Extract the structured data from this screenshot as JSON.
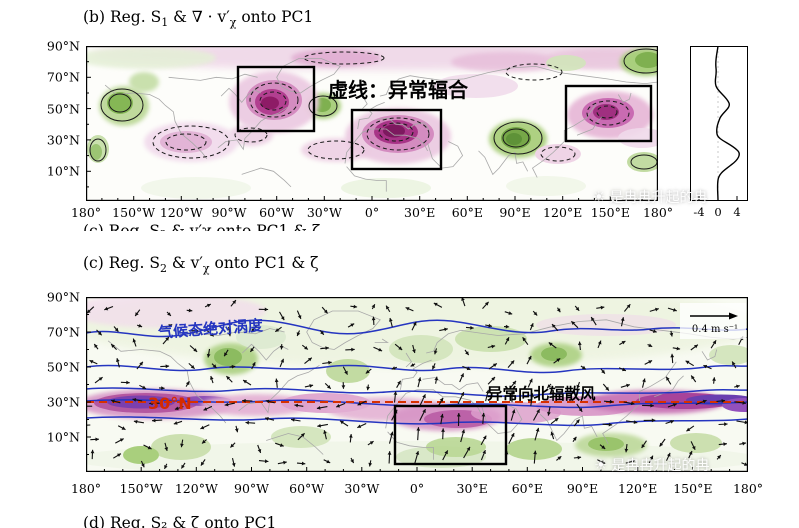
{
  "figure": {
    "panel_b": {
      "title": {
        "p1": "(b) Reg. S",
        "sub1": "1",
        "p2": " & ∇ · v′",
        "sub2": "χ",
        "p3": " onto PC1"
      },
      "lat_labels": [
        "90°N",
        "70°N",
        "50°N",
        "30°N",
        "10°N"
      ],
      "lon_labels": [
        "180°",
        "150°W",
        "120°W",
        "90°W",
        "60°W",
        "30°W",
        "0°",
        "30°E",
        "60°E",
        "90°E",
        "120°E",
        "150°E",
        "180°"
      ],
      "annotation": "虚线：异常辐合",
      "side_plot": {
        "tick_labels": [
          "-4",
          "0",
          "4"
        ]
      }
    },
    "panel_c": {
      "title": {
        "p1": "(c) Reg. S",
        "sub1": "2",
        "p2": " & v′",
        "sub2": "χ",
        "p3": " onto PC1 & ζ"
      },
      "lat_labels": [
        "90°N",
        "70°N",
        "50°N",
        "30°N",
        "10°N"
      ],
      "lon_labels": [
        "180°",
        "150°W",
        "120°W",
        "90°W",
        "60°W",
        "30°W",
        "0°",
        "30°E",
        "60°E",
        "90°E",
        "120°E",
        "150°E",
        "180°"
      ],
      "vorticity_label": "气候态绝对涡度",
      "lat30_label": "30°N",
      "wind_label": "异常向北辐散风",
      "ref_arrow_label": "0.4 m s⁻¹"
    },
    "cropped_line_c": "(c) Reg. S₂ & v′χ onto PC1 & ζ",
    "cropped_line_d": "(d) Reg. S₂ & ζ onto PC1",
    "watermark": {
      "icon": "☀",
      "text": "是冉冉升起的冉"
    },
    "colors": {
      "magenta_dark": "#8e1b66",
      "magenta": "#c061a8",
      "magenta_light": "#ecc9e0",
      "purple_core": "#6a3fb0",
      "green_dark": "#6fa83e",
      "green": "#a5cc76",
      "green_light": "#dcead0",
      "vorticity_blue": "#2535c0",
      "lat30_red": "#d42a00",
      "coast_gray": "#a8a8a8"
    }
  },
  "chart_data": [
    {
      "type": "heatmap",
      "panel": "b",
      "title": "(b) Reg. S1 & ∇·v'χ onto PC1",
      "x": {
        "label": "longitude",
        "ticks": [
          "180°",
          "150°W",
          "120°W",
          "90°W",
          "60°W",
          "30°W",
          "0°",
          "30°E",
          "60°E",
          "90°E",
          "120°E",
          "150°E",
          "180°"
        ]
      },
      "y": {
        "label": "latitude",
        "ticks": [
          "90°N",
          "70°N",
          "50°N",
          "30°N",
          "10°N"
        ]
      },
      "legend": "magenta shading with dashed contours = anomalous convergence (虚线：异常辐合); green shading with solid contours = anomalous divergence",
      "highlighted_regions": [
        {
          "approx_lon": "95°W–45°W",
          "approx_lat": "50°N–77°N",
          "signal": "strong magenta convergence center"
        },
        {
          "approx_lon": "10°W–45°E",
          "approx_lat": "18°N–50°N",
          "signal": "strongest magenta convergence center"
        },
        {
          "approx_lon": "120°E–175°E",
          "approx_lat": "38°N–62°N",
          "signal": "magenta convergence center"
        }
      ],
      "side_profile": {
        "x_ticks": [
          -4,
          0,
          4
        ],
        "description": "zonal-mean regression profile vs latitude; positive peaks near 55°N (~+2) and 30°N–35°N (~+4)"
      }
    },
    {
      "type": "heatmap",
      "panel": "c",
      "title": "(c) Reg. S2 & v'χ onto PC1 & ζ",
      "x": {
        "label": "longitude",
        "ticks": [
          "180°",
          "150°W",
          "120°W",
          "90°W",
          "60°W",
          "30°W",
          "0°",
          "30°E",
          "60°E",
          "90°E",
          "120°E",
          "150°E",
          "180°"
        ]
      },
      "y": {
        "label": "latitude",
        "ticks": [
          "90°N",
          "70°N",
          "50°N",
          "30°N",
          "10°N"
        ]
      },
      "legend": "magenta/purple zonal band along ~30°N; green shading elsewhere; blue contours = climatological absolute vorticity (气候态绝对涡度); black vectors = anomalous divergent wind, reference arrow 0.4 m s⁻¹",
      "red_dashed_latitude": "30°N",
      "highlighted_regions": [
        {
          "approx_lon": "10°W–45°E",
          "approx_lat": "8°N–33°N",
          "signal": "boxed region of anomalous northward divergent wind (异常向北辐散风)"
        }
      ]
    }
  ]
}
